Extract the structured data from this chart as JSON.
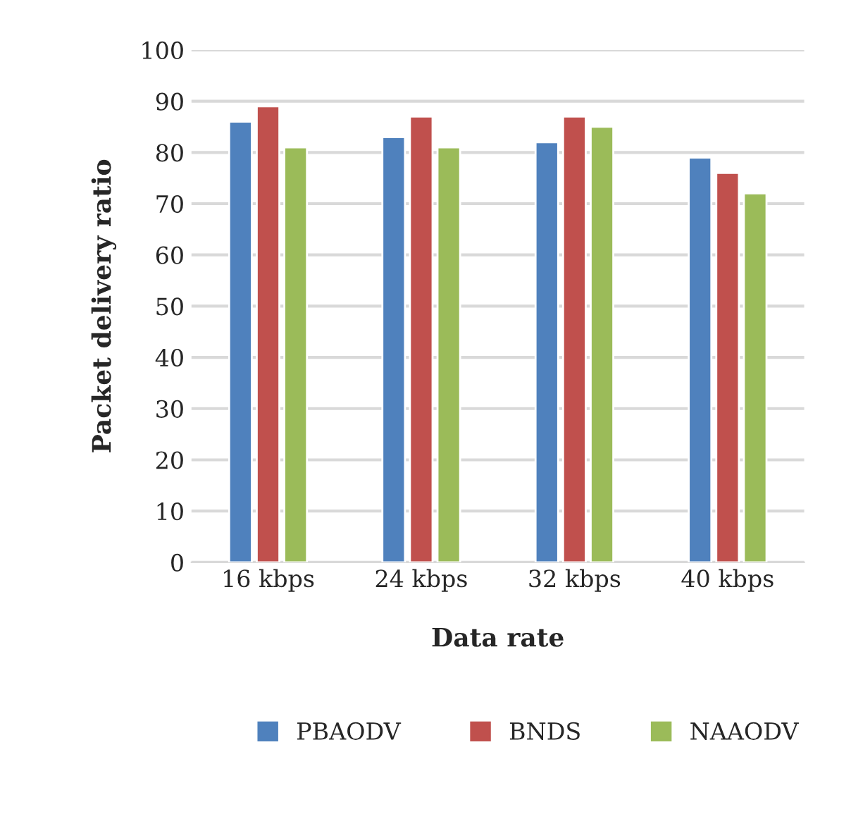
{
  "chart_data": {
    "type": "bar",
    "xlabel": "Data rate",
    "ylabel": "Packet delivery ratio",
    "categories": [
      "16 kbps",
      "24 kbps",
      "32 kbps",
      "40 kbps"
    ],
    "series": [
      {
        "name": "PBAODV",
        "color": "#4f81bd",
        "values": [
          86,
          83,
          82,
          79
        ]
      },
      {
        "name": "BNDS",
        "color": "#c0504d",
        "values": [
          89,
          87,
          87,
          76
        ]
      },
      {
        "name": "NAAODV",
        "color": "#9bbb59",
        "values": [
          81,
          81,
          85,
          72
        ]
      }
    ],
    "ylim": [
      0,
      100
    ],
    "yticks": [
      0,
      10,
      20,
      30,
      40,
      50,
      60,
      70,
      80,
      90,
      100
    ],
    "grid": "y",
    "legend": "bottom"
  }
}
